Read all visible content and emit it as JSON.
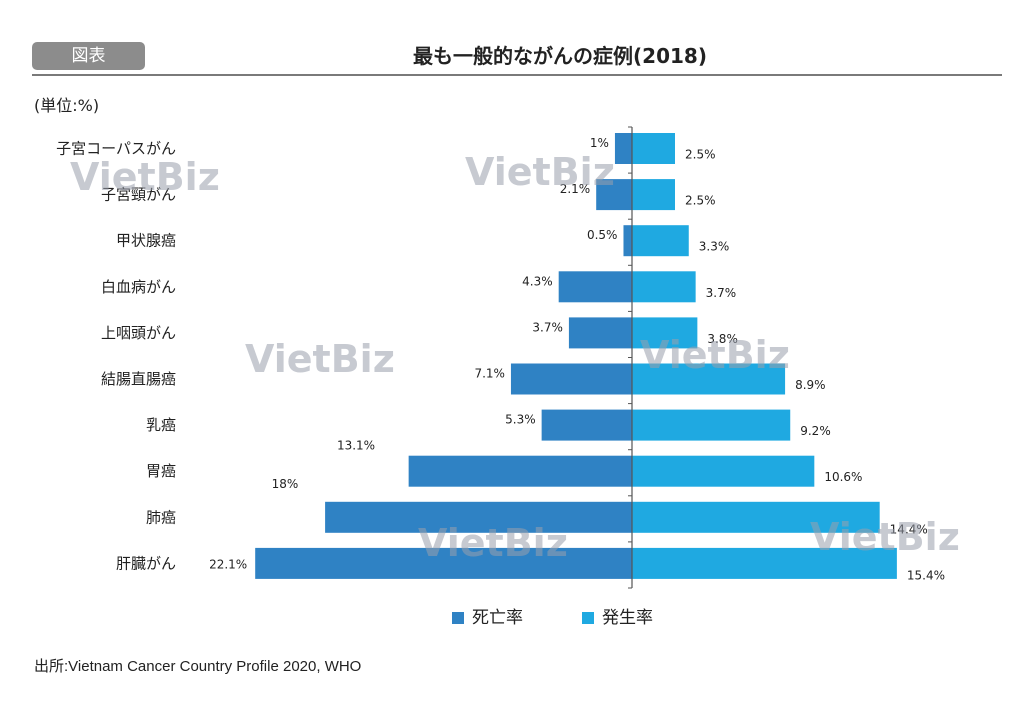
{
  "header": {
    "badge": "図表",
    "title": "最も一般的ながんの症例(2018)",
    "unit": "(単位:%)"
  },
  "source": "出所:Vietnam Cancer Country Profile 2020, WHO",
  "watermark": "VietBiz",
  "colors": {
    "death": "#2f82c4",
    "incidence": "#1fa9e1"
  },
  "chart_data": {
    "type": "bar",
    "orientation": "horizontal-butterfly",
    "categories": [
      "子宮コーパスがん",
      "子宮頸がん",
      "甲状腺癌",
      "白血病がん",
      "上咽頭がん",
      "結腸直腸癌",
      "乳癌",
      "胃癌",
      "肺癌",
      "肝臓がん"
    ],
    "series": [
      {
        "name": "死亡率",
        "values": [
          1,
          2.1,
          0.5,
          4.3,
          3.7,
          7.1,
          5.3,
          13.1,
          18,
          22.1
        ],
        "labels": [
          "1%",
          "2.1%",
          "0.5%",
          "4.3%",
          "3.7%",
          "7.1%",
          "5.3%",
          "13.1%",
          "18%",
          "22.1%"
        ]
      },
      {
        "name": "発生率",
        "values": [
          2.5,
          2.5,
          3.3,
          3.7,
          3.8,
          8.9,
          9.2,
          10.6,
          14.4,
          15.4
        ],
        "labels": [
          "2.5%",
          "2.5%",
          "3.3%",
          "3.7%",
          "3.8%",
          "8.9%",
          "9.2%",
          "10.6%",
          "14.4%",
          "15.4%"
        ]
      }
    ],
    "legend": "bottom"
  }
}
